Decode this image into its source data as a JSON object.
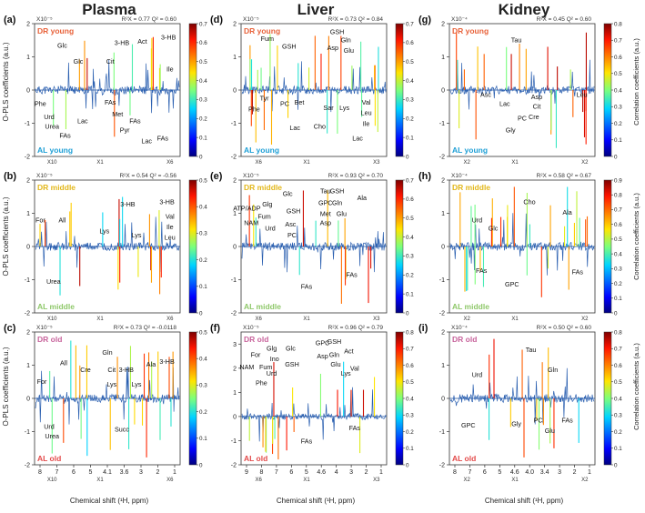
{
  "columns": [
    {
      "key": "plasma",
      "title": "Plasma"
    },
    {
      "key": "liver",
      "title": "Liver"
    },
    {
      "key": "kidney",
      "title": "Kidney"
    }
  ],
  "ylabel": "O-PLS coefficients (a.u.)",
  "xlabel": "Chemical shift (¹H, ppm)",
  "cbar_label": "Correlation coefficients (a.u.)",
  "colors": {
    "dr_young": "#e8623a",
    "al_young": "#1e9fd6",
    "dr_middle": "#e3b81c",
    "al_middle": "#8fc86a",
    "dr_old": "#c8649c",
    "al_old": "#e34a4a"
  },
  "chart_data": [
    {
      "type": "line",
      "panel": "(a)",
      "tissue": "plasma",
      "col": 0,
      "row": 0,
      "scale_label": "X10⁻⁵",
      "stats": "R²X = 0.77  Q² = 0.60",
      "top_group": "DR young",
      "bottom_group": "AL young",
      "top_color": "#e8623a",
      "bottom_color": "#1e9fd6",
      "ylim": [
        -2,
        2
      ],
      "yticks": [
        "-2",
        "-1",
        "0",
        "1",
        "2"
      ],
      "cbar_max": 0.7,
      "cbar_ticks": [
        "0",
        "0.1",
        "0.2",
        "0.3",
        "0.4",
        "0.5",
        "0.6",
        "0.7"
      ],
      "xticks": [],
      "zoom_labels": [
        "X10",
        "X1",
        "X6"
      ],
      "labels": [
        {
          "t": "Glc",
          "x": 0.19,
          "y": 0.18
        },
        {
          "t": "Glc",
          "x": 0.3,
          "y": 0.3
        },
        {
          "t": "Cit",
          "x": 0.52,
          "y": 0.3
        },
        {
          "t": "3-HB",
          "x": 0.6,
          "y": 0.16
        },
        {
          "t": "Act",
          "x": 0.74,
          "y": 0.15
        },
        {
          "t": "3-HB",
          "x": 0.92,
          "y": 0.12
        },
        {
          "t": "Ile",
          "x": 0.93,
          "y": 0.36
        },
        {
          "t": "Phe",
          "x": 0.04,
          "y": 0.62
        },
        {
          "t": "Urd",
          "x": 0.1,
          "y": 0.72
        },
        {
          "t": "Urea",
          "x": 0.12,
          "y": 0.79
        },
        {
          "t": "FAs",
          "x": 0.21,
          "y": 0.86
        },
        {
          "t": "Lac",
          "x": 0.33,
          "y": 0.75
        },
        {
          "t": "FAs",
          "x": 0.52,
          "y": 0.61
        },
        {
          "t": "Met",
          "x": 0.57,
          "y": 0.7
        },
        {
          "t": "FAs",
          "x": 0.69,
          "y": 0.75
        },
        {
          "t": "Pyr",
          "x": 0.62,
          "y": 0.82
        },
        {
          "t": "Lac",
          "x": 0.77,
          "y": 0.9
        },
        {
          "t": "FAs",
          "x": 0.88,
          "y": 0.88
        }
      ]
    },
    {
      "type": "line",
      "panel": "(b)",
      "tissue": "plasma",
      "col": 0,
      "row": 1,
      "scale_label": "X10⁻⁵",
      "stats": "R²X = 0.54  Q² = -0.56",
      "top_group": "DR middle",
      "bottom_group": "AL middle",
      "top_color": "#e3b81c",
      "bottom_color": "#8fc86a",
      "ylim": [
        -2,
        2
      ],
      "yticks": [
        "-2",
        "-1",
        "0",
        "1",
        "2"
      ],
      "cbar_max": 0.5,
      "cbar_ticks": [
        "0",
        "0.1",
        "0.2",
        "0.3",
        "0.4",
        "0.5"
      ],
      "xticks": [],
      "zoom_labels": [
        "X10",
        "X1",
        "X6"
      ],
      "labels": [
        {
          "t": "For",
          "x": 0.04,
          "y": 0.32
        },
        {
          "t": "All",
          "x": 0.19,
          "y": 0.32
        },
        {
          "t": "Lys",
          "x": 0.48,
          "y": 0.4
        },
        {
          "t": "3-HB",
          "x": 0.64,
          "y": 0.2
        },
        {
          "t": "Lys",
          "x": 0.7,
          "y": 0.43
        },
        {
          "t": "3-HB",
          "x": 0.91,
          "y": 0.18
        },
        {
          "t": "Val",
          "x": 0.93,
          "y": 0.29
        },
        {
          "t": "Ile",
          "x": 0.93,
          "y": 0.37
        },
        {
          "t": "Leu",
          "x": 0.93,
          "y": 0.45
        },
        {
          "t": "Urea",
          "x": 0.13,
          "y": 0.78
        }
      ]
    },
    {
      "type": "line",
      "panel": "(c)",
      "tissue": "plasma",
      "col": 0,
      "row": 2,
      "scale_label": "X10⁻⁵",
      "stats": "R²X = 0.73  Q² = -0.0118",
      "top_group": "DR old",
      "bottom_group": "AL old",
      "top_color": "#c8649c",
      "bottom_color": "#e34a4a",
      "ylim": [
        -2,
        2
      ],
      "yticks": [
        "-2",
        "-1",
        "0",
        "1",
        "2"
      ],
      "cbar_max": 0.5,
      "cbar_ticks": [
        "0",
        "0.1",
        "0.2",
        "0.3",
        "0.4",
        "0.5"
      ],
      "xticks": [
        "8",
        "7",
        "6",
        "5",
        "4.1",
        "3.6",
        "3",
        "2",
        "1"
      ],
      "zoom_labels": [
        "X10",
        "X1",
        "X6"
      ],
      "labels": [
        {
          "t": "For",
          "x": 0.05,
          "y": 0.39
        },
        {
          "t": "All",
          "x": 0.2,
          "y": 0.25
        },
        {
          "t": "Cre",
          "x": 0.35,
          "y": 0.3
        },
        {
          "t": "Gln",
          "x": 0.5,
          "y": 0.17
        },
        {
          "t": "Cit",
          "x": 0.53,
          "y": 0.3
        },
        {
          "t": "Lys",
          "x": 0.53,
          "y": 0.41
        },
        {
          "t": "3-HB",
          "x": 0.63,
          "y": 0.3
        },
        {
          "t": "Lys",
          "x": 0.7,
          "y": 0.41
        },
        {
          "t": "Ala",
          "x": 0.8,
          "y": 0.26
        },
        {
          "t": "3-HB",
          "x": 0.91,
          "y": 0.24
        },
        {
          "t": "Urd",
          "x": 0.1,
          "y": 0.73
        },
        {
          "t": "Urea",
          "x": 0.12,
          "y": 0.8
        },
        {
          "t": "Succ",
          "x": 0.6,
          "y": 0.75
        }
      ]
    },
    {
      "type": "line",
      "panel": "(d)",
      "tissue": "liver",
      "col": 1,
      "row": 0,
      "scale_label": "X10⁻⁵",
      "stats": "R²X = 0.73  Q² = 0.84",
      "top_group": "DR young",
      "bottom_group": "AL young",
      "top_color": "#e8623a",
      "bottom_color": "#1e9fd6",
      "ylim": [
        -2,
        2
      ],
      "yticks": [
        "-2",
        "-1",
        "0",
        "1",
        "2"
      ],
      "cbar_max": 0.7,
      "cbar_ticks": [
        "0",
        "0.1",
        "0.2",
        "0.3",
        "0.4",
        "0.5",
        "0.6",
        "0.7"
      ],
      "xticks": [],
      "zoom_labels": [
        "X6",
        "X1",
        "X3"
      ],
      "labels": [
        {
          "t": "Fum",
          "x": 0.18,
          "y": 0.13
        },
        {
          "t": "GSH",
          "x": 0.33,
          "y": 0.19
        },
        {
          "t": "GSH",
          "x": 0.66,
          "y": 0.08
        },
        {
          "t": "Gln",
          "x": 0.72,
          "y": 0.14
        },
        {
          "t": "Asp",
          "x": 0.63,
          "y": 0.2
        },
        {
          "t": "Glu",
          "x": 0.74,
          "y": 0.22
        },
        {
          "t": "Tyr",
          "x": 0.16,
          "y": 0.58
        },
        {
          "t": "Phe",
          "x": 0.09,
          "y": 0.66
        },
        {
          "t": "PC",
          "x": 0.3,
          "y": 0.62
        },
        {
          "t": "Bet",
          "x": 0.4,
          "y": 0.61
        },
        {
          "t": "Lac",
          "x": 0.37,
          "y": 0.8
        },
        {
          "t": "Cho",
          "x": 0.54,
          "y": 0.79
        },
        {
          "t": "Sar",
          "x": 0.6,
          "y": 0.65
        },
        {
          "t": "Lys",
          "x": 0.71,
          "y": 0.65
        },
        {
          "t": "Lac",
          "x": 0.8,
          "y": 0.88
        },
        {
          "t": "Val",
          "x": 0.86,
          "y": 0.61
        },
        {
          "t": "Leu",
          "x": 0.86,
          "y": 0.69
        },
        {
          "t": "Ile",
          "x": 0.86,
          "y": 0.77
        }
      ]
    },
    {
      "type": "line",
      "panel": "(e)",
      "tissue": "liver",
      "col": 1,
      "row": 1,
      "scale_label": "X10⁻⁵",
      "stats": "R²X = 0.93  Q² = 0.70",
      "top_group": "DR middle",
      "bottom_group": "AL middle",
      "top_color": "#e3b81c",
      "bottom_color": "#8fc86a",
      "ylim": [
        -2,
        2
      ],
      "yticks": [
        "-2",
        "-1",
        "0",
        "1",
        "2"
      ],
      "cbar_max": 0.7,
      "cbar_ticks": [
        "0",
        "0.1",
        "0.2",
        "0.3",
        "0.4",
        "0.5",
        "0.6",
        "0.7"
      ],
      "xticks": [],
      "zoom_labels": [
        "X6",
        "X1",
        "X3"
      ],
      "labels": [
        {
          "t": "ATP/ADP",
          "x": 0.04,
          "y": 0.23
        },
        {
          "t": "Glg",
          "x": 0.18,
          "y": 0.2
        },
        {
          "t": "Glc",
          "x": 0.32,
          "y": 0.12
        },
        {
          "t": "Fum",
          "x": 0.16,
          "y": 0.29
        },
        {
          "t": "NAM",
          "x": 0.07,
          "y": 0.34
        },
        {
          "t": "Urd",
          "x": 0.2,
          "y": 0.38
        },
        {
          "t": "GSH",
          "x": 0.36,
          "y": 0.25
        },
        {
          "t": "Asc",
          "x": 0.34,
          "y": 0.35
        },
        {
          "t": "PC",
          "x": 0.35,
          "y": 0.43
        },
        {
          "t": "Tau",
          "x": 0.58,
          "y": 0.1
        },
        {
          "t": "GPC",
          "x": 0.58,
          "y": 0.19
        },
        {
          "t": "Met",
          "x": 0.58,
          "y": 0.27
        },
        {
          "t": "Asp",
          "x": 0.58,
          "y": 0.34
        },
        {
          "t": "GSH",
          "x": 0.66,
          "y": 0.1
        },
        {
          "t": "Gln",
          "x": 0.66,
          "y": 0.19
        },
        {
          "t": "Glu",
          "x": 0.69,
          "y": 0.27
        },
        {
          "t": "Ala",
          "x": 0.83,
          "y": 0.15
        },
        {
          "t": "FAs",
          "x": 0.45,
          "y": 0.82
        },
        {
          "t": "FAs",
          "x": 0.76,
          "y": 0.73
        }
      ]
    },
    {
      "type": "line",
      "panel": "(f)",
      "tissue": "liver",
      "col": 1,
      "row": 2,
      "scale_label": "X10⁻⁵",
      "stats": "R²X = 0.96  Q² = 0.79",
      "top_group": "DR old",
      "bottom_group": "AL old",
      "top_color": "#c8649c",
      "bottom_color": "#e34a4a",
      "ylim": [
        -2,
        3.5
      ],
      "yticks": [
        "-2",
        "-1",
        "0",
        "1",
        "2",
        "3"
      ],
      "cbar_max": 0.8,
      "cbar_ticks": [
        "0",
        "0.1",
        "0.2",
        "0.3",
        "0.4",
        "0.5",
        "0.6",
        "0.7",
        "0.8"
      ],
      "xticks": [
        "9",
        "8",
        "7",
        "6",
        "5",
        "4.6",
        "4",
        "3",
        "2",
        "1"
      ],
      "zoom_labels": [
        "X6",
        "X1",
        "X3"
      ],
      "labels": [
        {
          "t": "For",
          "x": 0.1,
          "y": 0.19
        },
        {
          "t": "Glg",
          "x": 0.21,
          "y": 0.14
        },
        {
          "t": "Ino",
          "x": 0.23,
          "y": 0.22
        },
        {
          "t": "Fum",
          "x": 0.17,
          "y": 0.28
        },
        {
          "t": "NAM",
          "x": 0.04,
          "y": 0.28
        },
        {
          "t": "Urd",
          "x": 0.21,
          "y": 0.33
        },
        {
          "t": "Phe",
          "x": 0.14,
          "y": 0.4
        },
        {
          "t": "Glc",
          "x": 0.34,
          "y": 0.14
        },
        {
          "t": "GSH",
          "x": 0.35,
          "y": 0.26
        },
        {
          "t": "GPC",
          "x": 0.56,
          "y": 0.1
        },
        {
          "t": "Asp",
          "x": 0.56,
          "y": 0.2
        },
        {
          "t": "GSH",
          "x": 0.64,
          "y": 0.09
        },
        {
          "t": "Gln",
          "x": 0.64,
          "y": 0.19
        },
        {
          "t": "Glu",
          "x": 0.65,
          "y": 0.26
        },
        {
          "t": "Act",
          "x": 0.74,
          "y": 0.16
        },
        {
          "t": "Lys",
          "x": 0.72,
          "y": 0.33
        },
        {
          "t": "Val",
          "x": 0.78,
          "y": 0.29
        },
        {
          "t": "FAs",
          "x": 0.45,
          "y": 0.84
        },
        {
          "t": "FAs",
          "x": 0.78,
          "y": 0.74
        }
      ]
    },
    {
      "type": "line",
      "panel": "(g)",
      "tissue": "kidney",
      "col": 2,
      "row": 0,
      "scale_label": "X10⁻⁴",
      "stats": "R²X = 0.45  Q² = 0.60",
      "top_group": "DR young",
      "bottom_group": "AL young",
      "top_color": "#e8623a",
      "bottom_color": "#1e9fd6",
      "ylim": [
        -2,
        2
      ],
      "yticks": [
        "-2",
        "-1",
        "0",
        "1",
        "2"
      ],
      "cbar_max": 0.8,
      "cbar_ticks": [
        "0",
        "0.1",
        "0.2",
        "0.3",
        "0.4",
        "0.5",
        "0.6",
        "0.7",
        "0.8"
      ],
      "xticks": [],
      "zoom_labels": [
        "X2",
        "X1",
        "X2"
      ],
      "labels": [
        {
          "t": "Tau",
          "x": 0.46,
          "y": 0.14
        },
        {
          "t": "Asc",
          "x": 0.25,
          "y": 0.55
        },
        {
          "t": "Lac",
          "x": 0.38,
          "y": 0.62
        },
        {
          "t": "Asp",
          "x": 0.6,
          "y": 0.57
        },
        {
          "t": "Cit",
          "x": 0.6,
          "y": 0.64
        },
        {
          "t": "Cre",
          "x": 0.58,
          "y": 0.72
        },
        {
          "t": "PC",
          "x": 0.5,
          "y": 0.73
        },
        {
          "t": "Gly",
          "x": 0.42,
          "y": 0.82
        },
        {
          "t": "Leu",
          "x": 0.91,
          "y": 0.55
        }
      ]
    },
    {
      "type": "line",
      "panel": "(h)",
      "tissue": "kidney",
      "col": 2,
      "row": 1,
      "scale_label": "X10⁻⁴",
      "stats": "R²X = 0.58  Q² = 0.67",
      "top_group": "DR middle",
      "bottom_group": "AL middle",
      "top_color": "#e3b81c",
      "bottom_color": "#8fc86a",
      "ylim": [
        -2,
        2
      ],
      "yticks": [
        "-2",
        "-1",
        "0",
        "1",
        "2"
      ],
      "cbar_max": 0.9,
      "cbar_ticks": [
        "0",
        "0.1",
        "0.2",
        "0.3",
        "0.4",
        "0.5",
        "0.6",
        "0.7",
        "0.8",
        "0.9"
      ],
      "xticks": [],
      "zoom_labels": [
        "X2",
        "X1",
        "X2"
      ],
      "labels": [
        {
          "t": "Urd",
          "x": 0.19,
          "y": 0.32
        },
        {
          "t": "Glc",
          "x": 0.3,
          "y": 0.38
        },
        {
          "t": "Cho",
          "x": 0.55,
          "y": 0.18
        },
        {
          "t": "Ala",
          "x": 0.81,
          "y": 0.26
        },
        {
          "t": "FAs",
          "x": 0.22,
          "y": 0.7
        },
        {
          "t": "GPC",
          "x": 0.43,
          "y": 0.8
        },
        {
          "t": "FAs",
          "x": 0.88,
          "y": 0.71
        }
      ]
    },
    {
      "type": "line",
      "panel": "(i)",
      "tissue": "kidney",
      "col": 2,
      "row": 2,
      "scale_label": "X10⁻⁴",
      "stats": "R²X = 0.50  Q² = 0.60",
      "top_group": "DR old",
      "bottom_group": "AL old",
      "top_color": "#c8649c",
      "bottom_color": "#e34a4a",
      "ylim": [
        -2,
        2
      ],
      "yticks": [
        "-2",
        "-1",
        "0",
        "1",
        "2"
      ],
      "cbar_max": 0.8,
      "cbar_ticks": [
        "0",
        "0.1",
        "0.2",
        "0.3",
        "0.4",
        "0.5",
        "0.6",
        "0.7",
        "0.8"
      ],
      "xticks": [
        "8",
        "7",
        "6",
        "5",
        "4.6",
        "4.0",
        "3.4",
        "3",
        "2",
        "1"
      ],
      "zoom_labels": [
        "X2",
        "X1",
        "X2"
      ],
      "labels": [
        {
          "t": "Tau",
          "x": 0.56,
          "y": 0.15
        },
        {
          "t": "Urd",
          "x": 0.19,
          "y": 0.34
        },
        {
          "t": "Gln",
          "x": 0.71,
          "y": 0.3
        },
        {
          "t": "GPC",
          "x": 0.13,
          "y": 0.72
        },
        {
          "t": "Gly",
          "x": 0.46,
          "y": 0.71
        },
        {
          "t": "PC",
          "x": 0.61,
          "y": 0.68
        },
        {
          "t": "Glu",
          "x": 0.69,
          "y": 0.76
        },
        {
          "t": "FAs",
          "x": 0.81,
          "y": 0.68
        }
      ]
    }
  ]
}
